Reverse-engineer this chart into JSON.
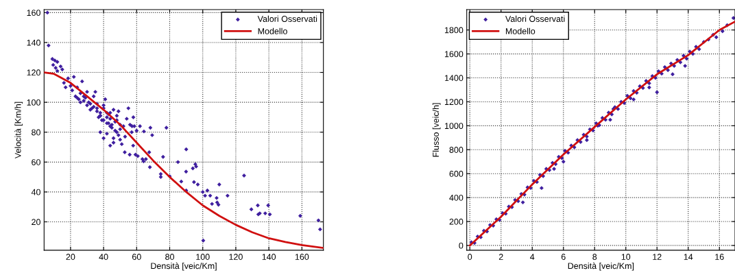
{
  "chart_data": [
    {
      "type": "scatter",
      "xlabel": "Densità [veic/Km]",
      "ylabel": "Velocità [Km/h]",
      "xlim": [
        4,
        173
      ],
      "ylim": [
        1,
        162
      ],
      "xticks": [
        20,
        40,
        60,
        80,
        100,
        120,
        140,
        160
      ],
      "yticks": [
        20,
        40,
        60,
        80,
        100,
        120,
        140,
        160
      ],
      "grid": true,
      "legend": "top right",
      "series": [
        {
          "name": "Valori Osservati",
          "type": "scatter",
          "marker": "diamond",
          "color": "#3f1f9f",
          "x": [
            6,
            6.7,
            9,
            10.5,
            12,
            11,
            9.5,
            14,
            15,
            12,
            16,
            17,
            18.5,
            20,
            22,
            21,
            23,
            24,
            25,
            26,
            27,
            28,
            29,
            30,
            31,
            32,
            33,
            34,
            35,
            24,
            26,
            28,
            30,
            32,
            34,
            36,
            38,
            36,
            37,
            38,
            39,
            40,
            41,
            42,
            43,
            44,
            45,
            46,
            47,
            48,
            49,
            50,
            38,
            40,
            42,
            44,
            46,
            48,
            50,
            52,
            40,
            42,
            44,
            46,
            48,
            50,
            36,
            38,
            40,
            42,
            43,
            44,
            45,
            47,
            49,
            51,
            53,
            54,
            55,
            56,
            57,
            58,
            58.6,
            60,
            57.2,
            60.7,
            59.3,
            55.8,
            52.8,
            57.9,
            63.5,
            65.6,
            64.2,
            67.6,
            68.3,
            69.4,
            64.4,
            62,
            68,
            78,
            76,
            74.6,
            74.6,
            80,
            87,
            85,
            89.9,
            90,
            90,
            94.7,
            96,
            94,
            95.5,
            97,
            100,
            100.3,
            101.4,
            102.8,
            104.5,
            105.6,
            108.4,
            108.7,
            109.5,
            110,
            115,
            125,
            129.4,
            133.3,
            133.6,
            134.5,
            137.8,
            139.6,
            140.6,
            159,
            170,
            171
          ],
          "values": [
            160,
            138,
            129,
            128,
            127,
            123,
            125,
            124,
            122,
            121,
            113,
            110,
            116,
            111,
            117,
            108,
            104,
            103,
            102,
            106,
            114,
            101,
            103,
            107,
            100,
            99,
            96,
            104,
            107,
            110,
            100,
            104,
            98,
            95,
            97,
            94,
            91,
            99,
            90,
            93,
            88,
            96,
            102,
            86,
            92,
            89,
            83,
            95,
            87,
            91,
            94,
            85,
            80,
            76,
            79,
            84,
            73,
            80,
            75,
            84,
            88,
            93,
            71,
            76,
            88,
            82,
            96,
            91,
            98,
            90,
            86,
            93,
            85,
            81,
            78,
            72,
            77,
            89,
            96,
            85,
            80,
            90,
            84,
            81,
            84,
            64,
            65,
            65,
            66.6,
            71,
            62,
            62,
            60.5,
            66.6,
            83,
            78,
            80.5,
            84,
            56.6,
            83,
            63.5,
            52,
            50,
            50.5,
            47,
            60,
            53.6,
            68.5,
            41,
            46.6,
            57,
            55.8,
            58.6,
            45,
            40,
            7.5,
            37.5,
            41,
            37.5,
            32,
            36,
            33,
            31.5,
            45,
            37.5,
            51,
            28.4,
            31,
            25,
            25.7,
            25.7,
            31,
            25,
            24,
            21,
            15
          ]
        },
        {
          "name": "Modello",
          "type": "line",
          "color": "#d01010",
          "x": [
            4,
            10,
            20,
            30,
            40,
            50,
            60,
            70,
            80,
            90,
            100,
            110,
            120,
            130,
            140,
            150,
            160,
            173
          ],
          "values": [
            120,
            119,
            113,
            104,
            95,
            85,
            73,
            61,
            50,
            40,
            31,
            24,
            18,
            13,
            9,
            6.5,
            4.5,
            2.5
          ]
        }
      ]
    },
    {
      "type": "scatter",
      "xlabel": "Densità [veic/Km]",
      "ylabel": "Flusso [veic/h]",
      "xlim": [
        -0.2,
        17
      ],
      "ylim": [
        -40,
        1970
      ],
      "xticks": [
        0,
        2,
        4,
        6,
        8,
        10,
        12,
        14,
        16
      ],
      "yticks": [
        0,
        200,
        400,
        600,
        800,
        1000,
        1200,
        1400,
        1600,
        1800
      ],
      "grid": true,
      "legend": "top left",
      "series": [
        {
          "name": "Valori Osservati",
          "type": "scatter",
          "marker": "diamond",
          "color": "#3f1f9f",
          "x": [
            0.1,
            0.3,
            0.5,
            0.7,
            0.9,
            1.1,
            1.3,
            1.5,
            1.7,
            1.9,
            2.1,
            2.3,
            2.5,
            2.7,
            2.9,
            3.1,
            3.3,
            3.5,
            3.7,
            3.9,
            4.1,
            4.3,
            4.5,
            4.7,
            4.9,
            5.1,
            5.3,
            5.5,
            5.7,
            5.9,
            6.1,
            6.3,
            6.5,
            6.7,
            6.9,
            7.1,
            7.3,
            7.5,
            7.7,
            7.9,
            8.1,
            8.3,
            8.5,
            8.7,
            8.9,
            9.1,
            9.3,
            9.5,
            9.7,
            9.9,
            10.1,
            10.3,
            10.5,
            10.7,
            10.9,
            11.1,
            11.3,
            11.5,
            11.7,
            11.9,
            12.1,
            12.3,
            12.5,
            12.7,
            12.9,
            13.1,
            13.3,
            13.5,
            13.7,
            13.9,
            14.1,
            14.3,
            14.5,
            14.7,
            15.0,
            15.3,
            15.6,
            15.8,
            16.2,
            16.5,
            16.9,
            4.6,
            5.4,
            7.5,
            8.2,
            9.2,
            10.5,
            12.0,
            13.8,
            3.4,
            6.0,
            9.0,
            11.5,
            13.0
          ],
          "values": [
            27,
            21,
            75,
            69,
            123,
            117,
            171,
            165,
            219,
            213,
            270,
            265,
            325,
            320,
            380,
            370,
            430,
            425,
            485,
            480,
            540,
            530,
            590,
            580,
            640,
            630,
            690,
            680,
            740,
            730,
            790,
            775,
            835,
            820,
            880,
            865,
            925,
            910,
            970,
            960,
            1020,
            1005,
            1065,
            1050,
            1110,
            1095,
            1155,
            1140,
            1200,
            1190,
            1250,
            1230,
            1290,
            1275,
            1330,
            1315,
            1375,
            1355,
            1415,
            1400,
            1455,
            1435,
            1490,
            1465,
            1520,
            1500,
            1550,
            1530,
            1585,
            1560,
            1620,
            1600,
            1660,
            1640,
            1700,
            1720,
            1760,
            1740,
            1790,
            1840,
            1900,
            480,
            640,
            880,
            1000,
            1140,
            1220,
            1280,
            1500,
            360,
            700,
            1050,
            1320,
            1430
          ]
        },
        {
          "name": "Modello",
          "type": "line",
          "color": "#d01010",
          "x": [
            0,
            2,
            4,
            6,
            8,
            10,
            12,
            14,
            16,
            17
          ],
          "values": [
            0,
            240,
            510,
            760,
            990,
            1220,
            1430,
            1590,
            1800,
            1870
          ]
        }
      ]
    }
  ]
}
